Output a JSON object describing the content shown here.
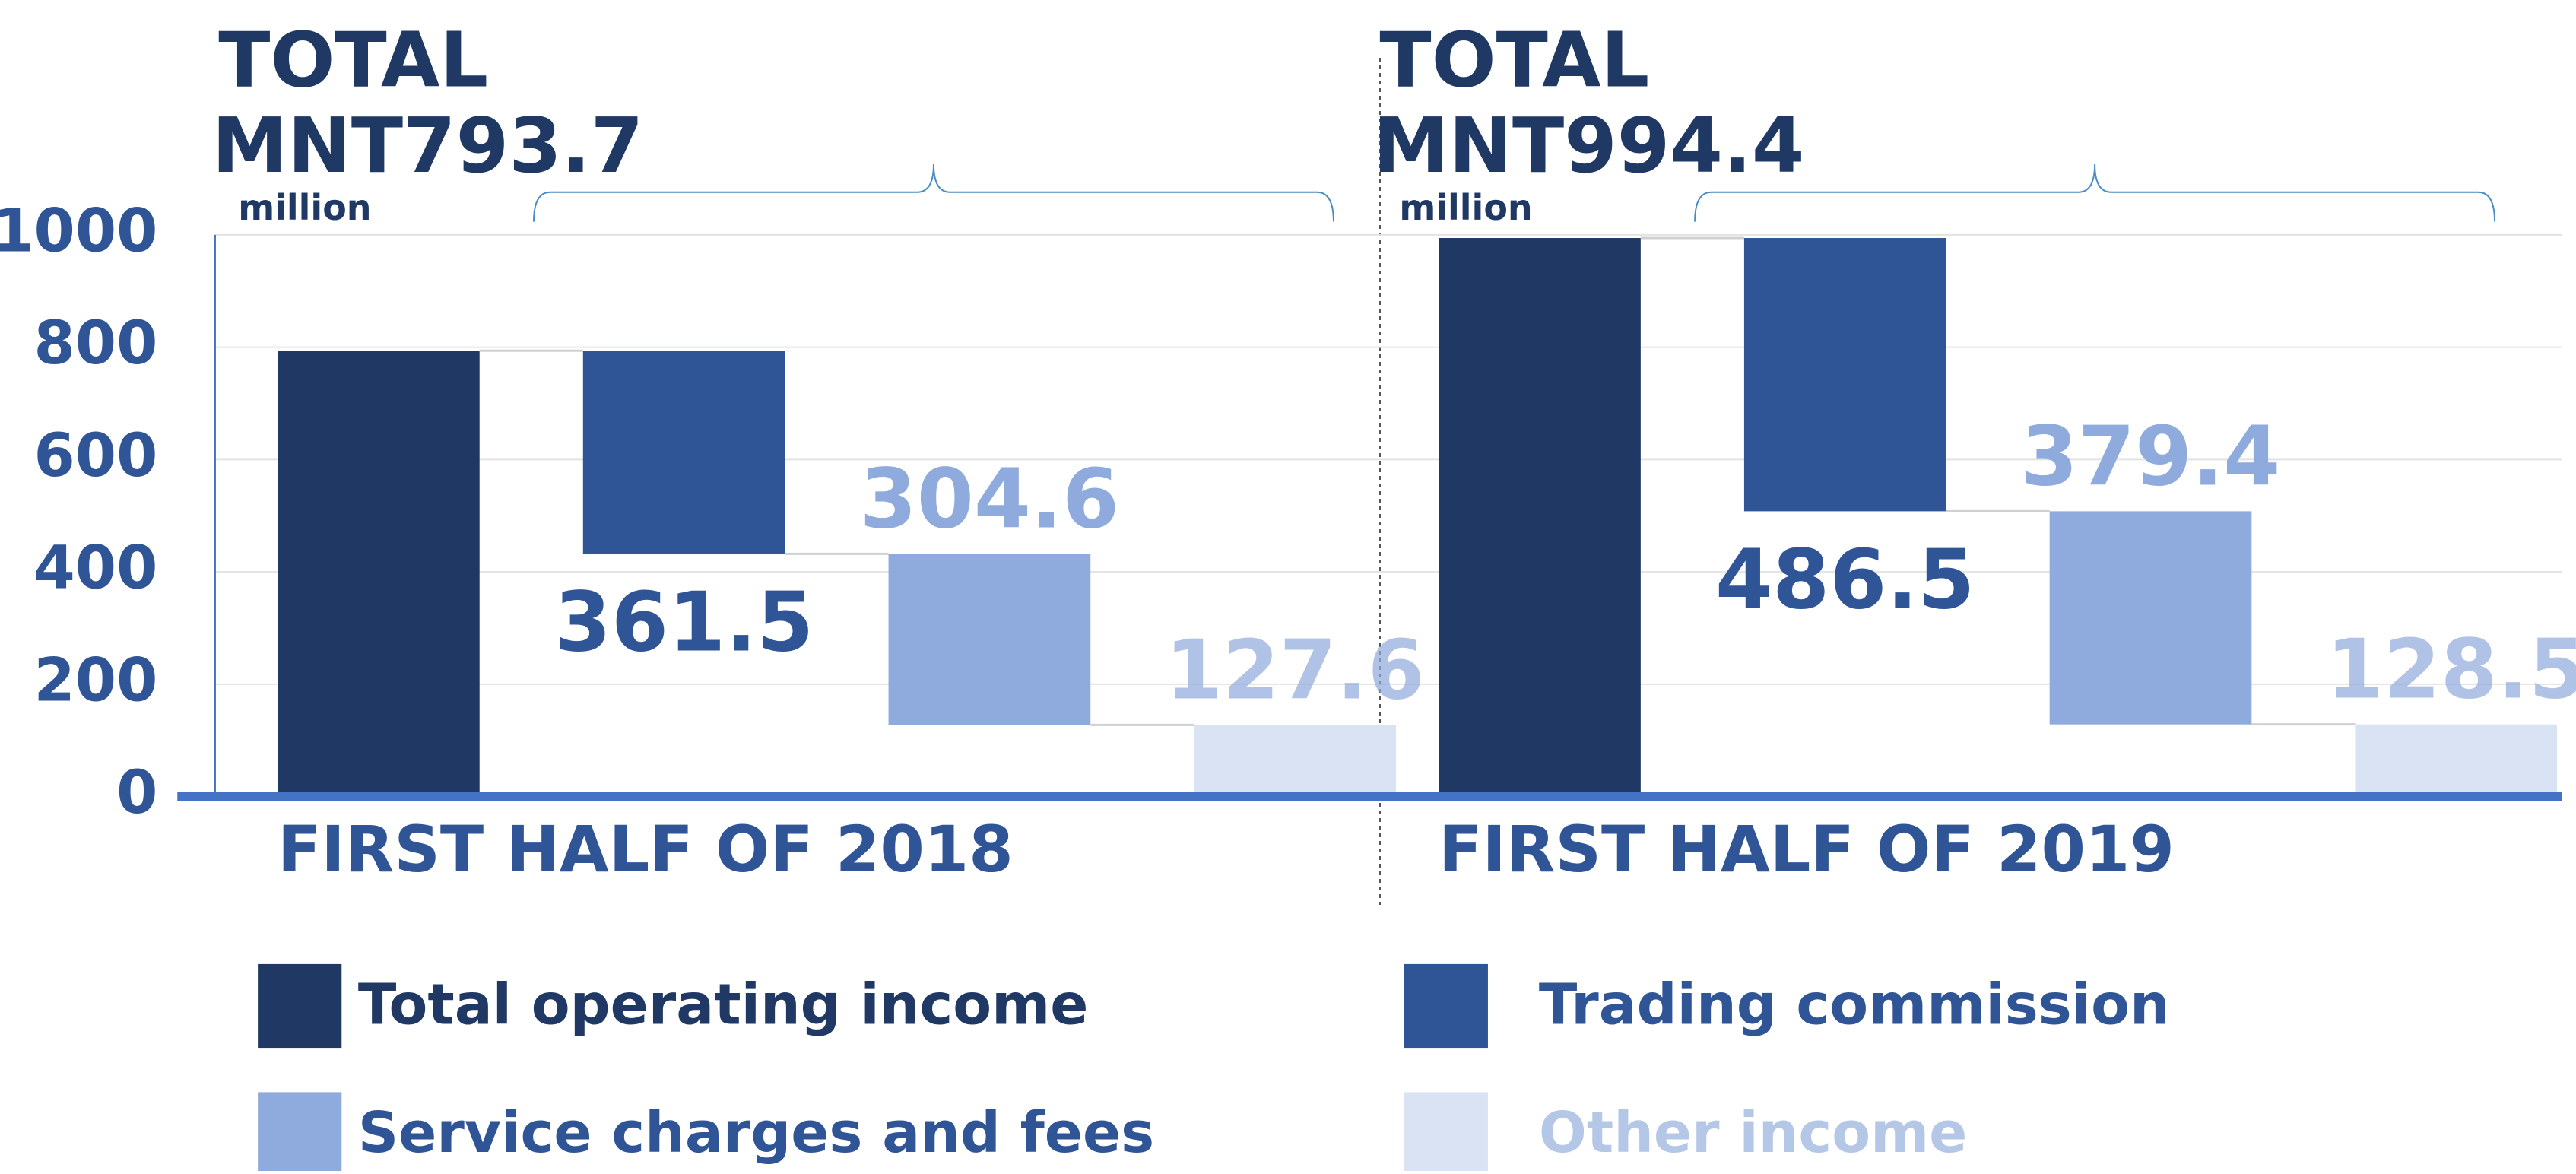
{
  "chart_data": {
    "type": "waterfall",
    "ylim": [
      0,
      1000
    ],
    "yticks": [
      0,
      200,
      400,
      600,
      800,
      1000
    ],
    "grid": true,
    "series": [
      {
        "name": "Total operating income",
        "color": "#1f3864",
        "label_color": "#1f3864"
      },
      {
        "name": "Trading commission",
        "color": "#2f5597",
        "label_color": "#2f5597"
      },
      {
        "name": "Service charges and fees",
        "color": "#8faadc",
        "label_color": "#2f5597"
      },
      {
        "name": "Other income",
        "color": "#dae3f3",
        "label_color": "#b4c7e7"
      }
    ],
    "panels": [
      {
        "title": "TOTAL",
        "unit": "million",
        "x_label": "FIRST HALF OF 2018",
        "values": [
          793.7,
          361.5,
          304.6,
          127.6
        ],
        "value_labels": [
          "MNT793.7",
          "361.5",
          "304.6",
          "127.6"
        ]
      },
      {
        "title": "TOTAL",
        "unit": "million",
        "x_label": "FIRST HALF OF 2019",
        "values": [
          994.4,
          486.5,
          379.4,
          128.5
        ],
        "value_labels": [
          "MNT994.4",
          "486.5",
          "379.4",
          "128.5"
        ]
      }
    ]
  }
}
